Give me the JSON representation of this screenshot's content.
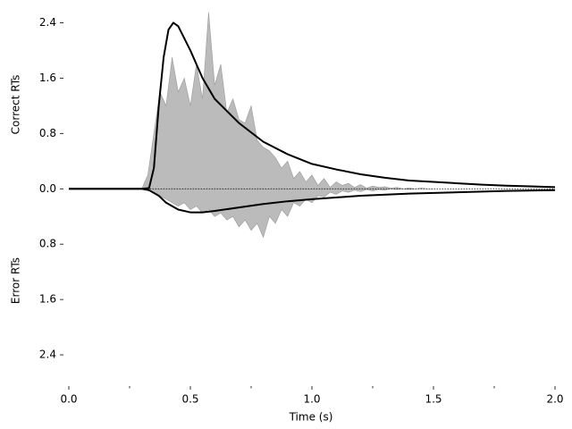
{
  "chart_data": {
    "type": "mirrored-density",
    "xlabel": "Time (s)",
    "ylabel_top": "Correct RTs",
    "ylabel_bottom": "Error RTs",
    "xlim": [
      0,
      2
    ],
    "ylim": [
      -2.8,
      2.6
    ],
    "xticks": [
      {
        "value": 0,
        "label": "0.0"
      },
      0.5,
      {
        "value": 1,
        "label": "1.0"
      },
      1.5,
      {
        "value": 2,
        "label": "2.0"
      }
    ],
    "xminorticks": [
      0.25,
      0.75,
      1.25,
      1.75
    ],
    "yticks": [
      2.4,
      1.6,
      0.8,
      {
        "value": 0,
        "label": "0.0"
      },
      {
        "value": -0.8,
        "label": "0.8"
      },
      {
        "value": -1.6,
        "label": "1.6"
      },
      {
        "value": -2.4,
        "label": "2.4"
      }
    ],
    "histogram_color": "#bbbbbb",
    "model_color": "#000000",
    "correct_histogram": {
      "x": [
        0.3,
        0.325,
        0.35,
        0.375,
        0.4,
        0.425,
        0.45,
        0.475,
        0.5,
        0.525,
        0.55,
        0.575,
        0.6,
        0.625,
        0.65,
        0.675,
        0.7,
        0.725,
        0.75,
        0.775,
        0.8,
        0.825,
        0.85,
        0.875,
        0.9,
        0.925,
        0.95,
        0.975,
        1.0,
        1.025,
        1.05,
        1.075,
        1.1,
        1.125,
        1.15,
        1.175,
        1.2,
        1.225,
        1.25,
        1.275,
        1.3,
        1.325,
        1.35,
        1.375,
        1.4,
        1.425,
        1.45,
        1.475,
        1.5
      ],
      "values": [
        0,
        0.2,
        0.8,
        1.4,
        1.2,
        1.9,
        1.4,
        1.6,
        1.2,
        1.8,
        1.3,
        2.55,
        1.5,
        1.8,
        1.1,
        1.3,
        1.0,
        0.95,
        1.2,
        0.7,
        0.6,
        0.55,
        0.45,
        0.3,
        0.4,
        0.15,
        0.25,
        0.1,
        0.2,
        0.05,
        0.15,
        0.02,
        0.1,
        0.05,
        0.08,
        0.02,
        0.06,
        0.01,
        0.04,
        0.02,
        0.03,
        0.01,
        0.02,
        0,
        0.01,
        0,
        0.01,
        0,
        0
      ]
    },
    "error_histogram": {
      "x": [
        0.3,
        0.325,
        0.35,
        0.375,
        0.4,
        0.425,
        0.45,
        0.475,
        0.5,
        0.525,
        0.55,
        0.575,
        0.6,
        0.625,
        0.65,
        0.675,
        0.7,
        0.725,
        0.75,
        0.775,
        0.8,
        0.825,
        0.85,
        0.875,
        0.9,
        0.925,
        0.95,
        0.975,
        1.0,
        1.025,
        1.05,
        1.075,
        1.1,
        1.125,
        1.15,
        1.175,
        1.2,
        1.225,
        1.25,
        1.275,
        1.3,
        1.325,
        1.35,
        1.375,
        1.4,
        1.425,
        1.45,
        1.475,
        1.5
      ],
      "values": [
        0,
        -0.02,
        -0.05,
        -0.1,
        -0.15,
        -0.2,
        -0.25,
        -0.2,
        -0.3,
        -0.25,
        -0.35,
        -0.3,
        -0.4,
        -0.35,
        -0.45,
        -0.4,
        -0.55,
        -0.45,
        -0.6,
        -0.5,
        -0.7,
        -0.4,
        -0.5,
        -0.3,
        -0.4,
        -0.2,
        -0.25,
        -0.15,
        -0.2,
        -0.1,
        -0.12,
        -0.05,
        -0.08,
        -0.03,
        -0.05,
        -0.02,
        -0.04,
        -0.01,
        -0.03,
        -0.01,
        -0.02,
        0,
        -0.01,
        0,
        -0.01,
        0,
        0,
        0,
        0
      ]
    },
    "correct_model": {
      "x": [
        0,
        0.3,
        0.33,
        0.35,
        0.37,
        0.39,
        0.41,
        0.43,
        0.45,
        0.5,
        0.55,
        0.6,
        0.7,
        0.8,
        0.9,
        1.0,
        1.1,
        1.2,
        1.3,
        1.4,
        1.5,
        1.6,
        1.7,
        1.8,
        1.9,
        2.0
      ],
      "values": [
        0,
        0,
        0.01,
        0.3,
        1.2,
        1.9,
        2.3,
        2.4,
        2.35,
        2.0,
        1.6,
        1.3,
        0.95,
        0.68,
        0.5,
        0.36,
        0.28,
        0.21,
        0.16,
        0.12,
        0.1,
        0.08,
        0.06,
        0.045,
        0.035,
        0.025
      ]
    },
    "error_model": {
      "x": [
        0,
        0.3,
        0.33,
        0.37,
        0.4,
        0.45,
        0.5,
        0.55,
        0.6,
        0.7,
        0.8,
        0.9,
        1.0,
        1.2,
        1.4,
        1.6,
        1.8,
        2.0
      ],
      "values": [
        0,
        0,
        -0.02,
        -0.1,
        -0.2,
        -0.3,
        -0.34,
        -0.34,
        -0.32,
        -0.27,
        -0.22,
        -0.18,
        -0.15,
        -0.1,
        -0.07,
        -0.05,
        -0.03,
        -0.02
      ]
    }
  }
}
